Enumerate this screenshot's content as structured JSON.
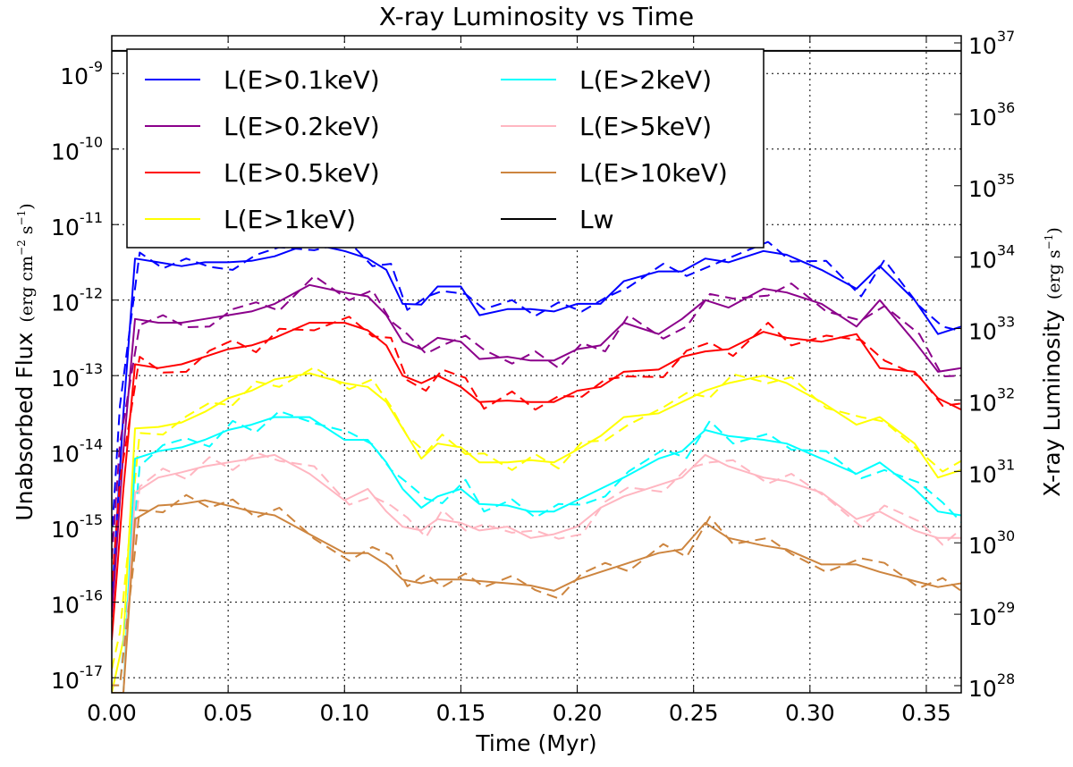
{
  "chart_data": {
    "type": "line",
    "title": "X-ray Luminosity vs Time",
    "xlabel": "Time (Myr)",
    "ylabel_left": "Unabsorbed Flux",
    "ylabel_left_unit": "erg cm",
    "ylabel_left_unit_exp": "−2",
    "ylabel_left_unit_s": " s",
    "ylabel_left_unit_s_exp": "−1",
    "ylabel_right": "X-ray Luminosity",
    "ylabel_right_unit": "erg s",
    "ylabel_right_unit_exp": "−1",
    "xlim": [
      0,
      0.365
    ],
    "ylim_left_log10": [
      -17.2,
      -8.5
    ],
    "ylim_right_log10": [
      27.9,
      37.1
    ],
    "x_ticks": [
      0.0,
      0.05,
      0.1,
      0.15,
      0.2,
      0.25,
      0.3,
      0.35
    ],
    "x_tick_labels": [
      "0.00",
      "0.05",
      "0.10",
      "0.15",
      "0.20",
      "0.25",
      "0.30",
      "0.35"
    ],
    "left_ticks": [
      {
        "exp": -9,
        "base": "10",
        "label": "-9"
      },
      {
        "exp": -10,
        "base": "10",
        "label": "-10"
      },
      {
        "exp": -11,
        "base": "10",
        "label": "-11"
      },
      {
        "exp": -12,
        "base": "10",
        "label": "-12"
      },
      {
        "exp": -13,
        "base": "10",
        "label": "-13"
      },
      {
        "exp": -14,
        "base": "10",
        "label": "-14"
      },
      {
        "exp": -15,
        "base": "10",
        "label": "-15"
      },
      {
        "exp": -16,
        "base": "10",
        "label": "-16"
      },
      {
        "exp": -17,
        "base": "10",
        "label": "-17"
      }
    ],
    "right_ticks": [
      {
        "exp": 37,
        "base": "10",
        "label": "37"
      },
      {
        "exp": 36,
        "base": "10",
        "label": "36"
      },
      {
        "exp": 35,
        "base": "10",
        "label": "35"
      },
      {
        "exp": 34,
        "base": "10",
        "label": "34"
      },
      {
        "exp": 33,
        "base": "10",
        "label": "33"
      },
      {
        "exp": 32,
        "base": "10",
        "label": "32"
      },
      {
        "exp": 31,
        "base": "10",
        "label": "31"
      },
      {
        "exp": 30,
        "base": "10",
        "label": "30"
      },
      {
        "exp": 29,
        "base": "10",
        "label": "29"
      },
      {
        "exp": 28,
        "base": "10",
        "label": "28"
      }
    ],
    "grid": true,
    "legend_position": "upper-left",
    "lw_level_log10": -8.7,
    "series": [
      {
        "name": "L(E>0.1keV)",
        "color": "#0000ff",
        "x": [
          0.0,
          0.005,
          0.01,
          0.02,
          0.03,
          0.04,
          0.05,
          0.06,
          0.07,
          0.085,
          0.1,
          0.11,
          0.118,
          0.125,
          0.133,
          0.14,
          0.15,
          0.158,
          0.17,
          0.18,
          0.19,
          0.2,
          0.21,
          0.22,
          0.235,
          0.245,
          0.255,
          0.265,
          0.28,
          0.29,
          0.305,
          0.32,
          0.33,
          0.345,
          0.355,
          0.365
        ],
        "y": [
          -16.0,
          -13.5,
          -11.45,
          -11.5,
          -11.55,
          -11.5,
          -11.5,
          -11.48,
          -11.42,
          -11.25,
          -11.35,
          -11.45,
          -11.6,
          -12.05,
          -12.06,
          -11.82,
          -11.82,
          -12.2,
          -12.12,
          -12.12,
          -12.15,
          -12.05,
          -12.05,
          -11.75,
          -11.62,
          -11.62,
          -11.45,
          -11.5,
          -11.35,
          -11.4,
          -11.6,
          -11.85,
          -11.55,
          -12.0,
          -12.45,
          -12.35
        ]
      },
      {
        "name": "L(E>0.2keV)",
        "color": "#8b008b",
        "x": [
          0.0,
          0.005,
          0.01,
          0.02,
          0.03,
          0.04,
          0.05,
          0.06,
          0.07,
          0.085,
          0.1,
          0.11,
          0.118,
          0.125,
          0.133,
          0.14,
          0.15,
          0.158,
          0.17,
          0.18,
          0.19,
          0.2,
          0.21,
          0.22,
          0.235,
          0.245,
          0.255,
          0.265,
          0.28,
          0.29,
          0.305,
          0.32,
          0.33,
          0.345,
          0.355,
          0.365
        ],
        "y": [
          -16.2,
          -14.0,
          -12.25,
          -12.3,
          -12.3,
          -12.25,
          -12.2,
          -12.15,
          -12.05,
          -11.8,
          -11.9,
          -11.95,
          -12.2,
          -12.55,
          -12.65,
          -12.5,
          -12.55,
          -12.78,
          -12.75,
          -12.8,
          -12.8,
          -12.65,
          -12.6,
          -12.3,
          -12.45,
          -12.25,
          -12.0,
          -12.1,
          -11.85,
          -11.9,
          -12.05,
          -12.35,
          -12.0,
          -12.55,
          -12.95,
          -12.9
        ]
      },
      {
        "name": "L(E>0.5keV)",
        "color": "#ff0000",
        "x": [
          0.0,
          0.005,
          0.01,
          0.02,
          0.03,
          0.04,
          0.05,
          0.06,
          0.07,
          0.085,
          0.1,
          0.11,
          0.118,
          0.125,
          0.133,
          0.14,
          0.15,
          0.158,
          0.17,
          0.18,
          0.19,
          0.2,
          0.21,
          0.22,
          0.235,
          0.245,
          0.255,
          0.265,
          0.28,
          0.29,
          0.305,
          0.32,
          0.33,
          0.345,
          0.355,
          0.365
        ],
        "y": [
          -16.5,
          -14.5,
          -12.85,
          -12.9,
          -12.85,
          -12.75,
          -12.65,
          -12.6,
          -12.5,
          -12.3,
          -12.3,
          -12.4,
          -12.6,
          -13.0,
          -13.1,
          -13.0,
          -13.15,
          -13.35,
          -13.33,
          -13.35,
          -13.35,
          -13.2,
          -13.15,
          -12.95,
          -12.92,
          -12.75,
          -12.68,
          -12.65,
          -12.42,
          -12.5,
          -12.55,
          -12.45,
          -12.9,
          -12.95,
          -13.3,
          -13.45
        ]
      },
      {
        "name": "L(E>1keV)",
        "color": "#ffff00",
        "x": [
          0.0,
          0.005,
          0.01,
          0.02,
          0.03,
          0.04,
          0.05,
          0.06,
          0.07,
          0.085,
          0.1,
          0.11,
          0.118,
          0.125,
          0.133,
          0.14,
          0.15,
          0.158,
          0.17,
          0.18,
          0.19,
          0.2,
          0.21,
          0.22,
          0.235,
          0.245,
          0.255,
          0.265,
          0.28,
          0.29,
          0.305,
          0.32,
          0.33,
          0.345,
          0.355,
          0.365
        ],
        "y": [
          -17.2,
          -16.5,
          -13.7,
          -13.68,
          -13.62,
          -13.48,
          -13.3,
          -13.2,
          -13.05,
          -12.97,
          -13.1,
          -13.15,
          -13.35,
          -13.7,
          -14.1,
          -13.9,
          -13.95,
          -14.15,
          -14.15,
          -14.12,
          -14.15,
          -13.98,
          -13.8,
          -13.55,
          -13.5,
          -13.35,
          -13.2,
          -13.1,
          -13.0,
          -13.1,
          -13.35,
          -13.65,
          -13.55,
          -13.9,
          -14.35,
          -14.25
        ]
      },
      {
        "name": "L(E>2keV)",
        "color": "#00ffff",
        "x": [
          0.0,
          0.005,
          0.01,
          0.02,
          0.03,
          0.04,
          0.05,
          0.06,
          0.07,
          0.085,
          0.1,
          0.11,
          0.118,
          0.125,
          0.133,
          0.14,
          0.15,
          0.158,
          0.17,
          0.18,
          0.19,
          0.2,
          0.21,
          0.22,
          0.235,
          0.245,
          0.255,
          0.265,
          0.28,
          0.29,
          0.305,
          0.32,
          0.33,
          0.345,
          0.355,
          0.365
        ],
        "y": [
          -17.2,
          -17.2,
          -14.1,
          -14.0,
          -13.95,
          -13.85,
          -13.72,
          -13.65,
          -13.55,
          -13.55,
          -13.85,
          -13.85,
          -14.15,
          -14.5,
          -14.75,
          -14.6,
          -14.5,
          -14.7,
          -14.72,
          -14.8,
          -14.8,
          -14.65,
          -14.5,
          -14.35,
          -14.1,
          -14.0,
          -13.72,
          -13.8,
          -13.85,
          -13.9,
          -14.1,
          -14.3,
          -14.15,
          -14.5,
          -14.8,
          -14.85
        ]
      },
      {
        "name": "L(E>5keV)",
        "color": "#ffb6c1",
        "x": [
          0.0,
          0.005,
          0.01,
          0.02,
          0.03,
          0.04,
          0.05,
          0.06,
          0.07,
          0.085,
          0.1,
          0.11,
          0.118,
          0.125,
          0.133,
          0.14,
          0.15,
          0.158,
          0.17,
          0.18,
          0.19,
          0.2,
          0.21,
          0.22,
          0.235,
          0.245,
          0.255,
          0.265,
          0.28,
          0.29,
          0.305,
          0.32,
          0.33,
          0.345,
          0.355,
          0.365
        ],
        "y": [
          -17.2,
          -17.2,
          -14.55,
          -14.35,
          -14.28,
          -14.2,
          -14.15,
          -14.1,
          -14.05,
          -14.3,
          -14.65,
          -14.5,
          -14.8,
          -15.0,
          -15.05,
          -14.9,
          -14.95,
          -15.05,
          -15.0,
          -15.15,
          -15.1,
          -15.0,
          -14.75,
          -14.6,
          -14.45,
          -14.35,
          -14.05,
          -14.2,
          -14.35,
          -14.4,
          -14.55,
          -14.9,
          -14.8,
          -15.05,
          -15.15,
          -15.15
        ]
      },
      {
        "name": "L(E>10keV)",
        "color": "#cd853f",
        "x": [
          0.0,
          0.005,
          0.01,
          0.02,
          0.03,
          0.04,
          0.05,
          0.06,
          0.07,
          0.085,
          0.1,
          0.11,
          0.118,
          0.125,
          0.133,
          0.14,
          0.15,
          0.158,
          0.17,
          0.18,
          0.19,
          0.2,
          0.21,
          0.22,
          0.235,
          0.245,
          0.255,
          0.265,
          0.28,
          0.29,
          0.305,
          0.32,
          0.33,
          0.345,
          0.355,
          0.365
        ],
        "y": [
          -17.2,
          -17.2,
          -14.9,
          -14.72,
          -14.7,
          -14.65,
          -14.72,
          -14.8,
          -14.85,
          -15.1,
          -15.35,
          -15.35,
          -15.5,
          -15.7,
          -15.75,
          -15.7,
          -15.7,
          -15.72,
          -15.75,
          -15.78,
          -15.85,
          -15.7,
          -15.6,
          -15.5,
          -15.35,
          -15.3,
          -14.95,
          -15.15,
          -15.25,
          -15.3,
          -15.5,
          -15.5,
          -15.6,
          -15.72,
          -15.8,
          -15.75
        ]
      },
      {
        "name": "Lw",
        "color": "#000000",
        "x": [],
        "y": []
      }
    ]
  }
}
